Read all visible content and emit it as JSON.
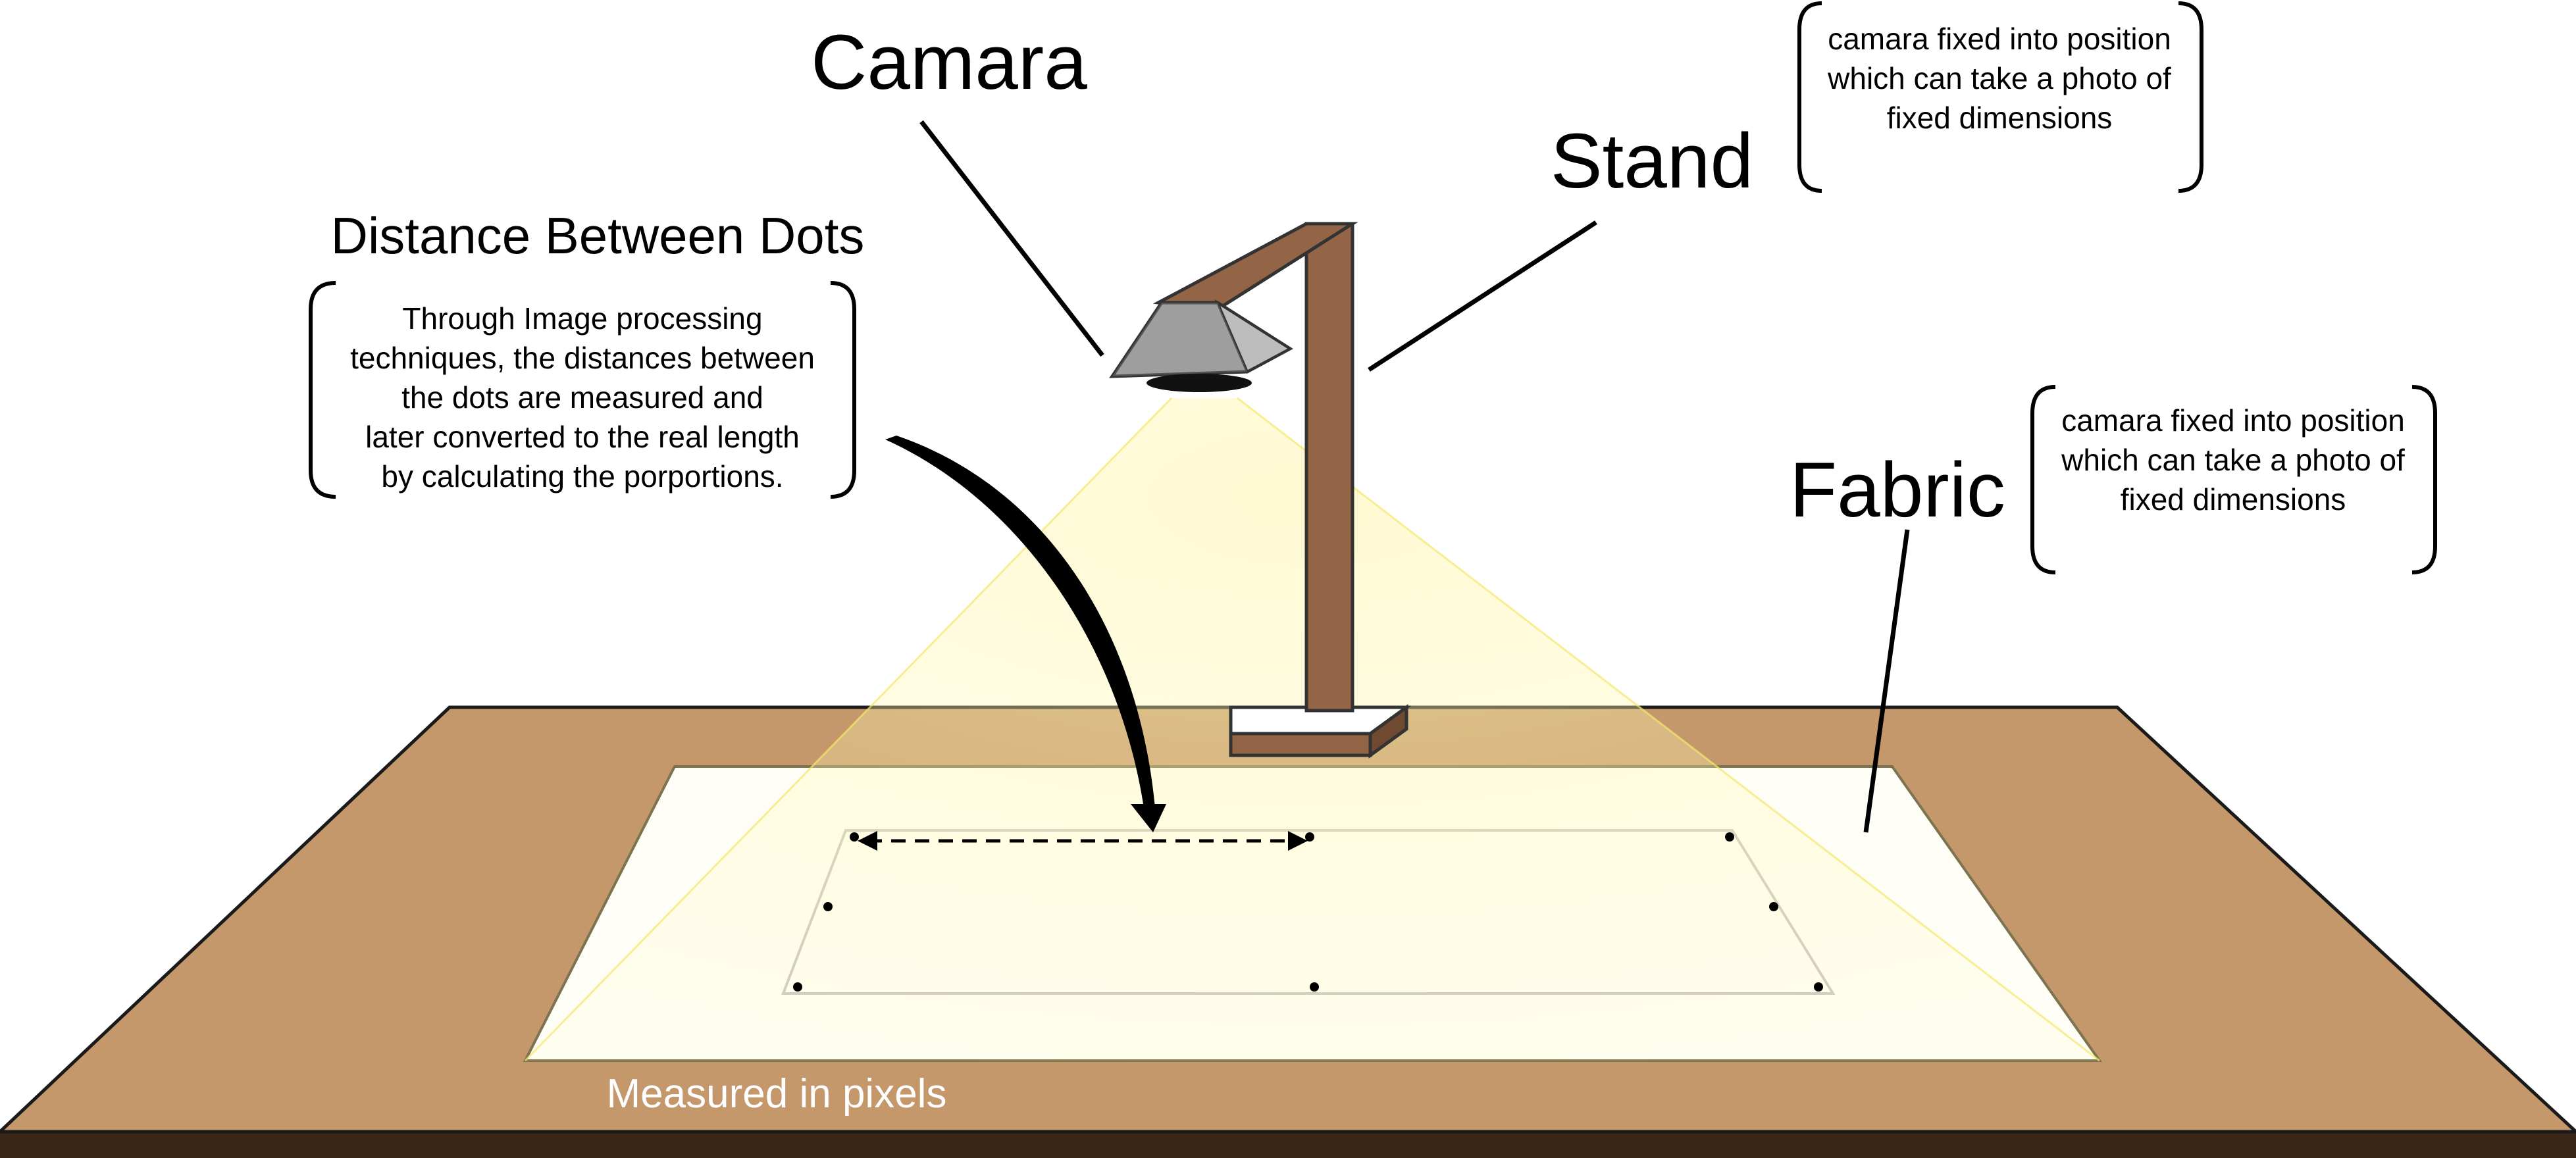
{
  "labels": {
    "camera": "Camara",
    "stand": "Stand",
    "fabric": "Fabric",
    "distance_heading": "Distance Between Dots",
    "measured": "Measured in pixels"
  },
  "notes": {
    "distance_lines": [
      "Through Image processing",
      "techniques, the distances between",
      "the dots are measured and",
      "later converted to the real length",
      "by calculating the porportions."
    ],
    "stand_lines": [
      "camara fixed into position",
      "which can take a photo of",
      "fixed dimensions"
    ],
    "fabric_lines": [
      "camara fixed into position",
      "which can take a photo of",
      "fixed dimensions"
    ]
  },
  "colors": {
    "table_top": "#c4986b",
    "table_edge": "#3a2616",
    "fabric": "#fffef6",
    "stand_wood": "#946446",
    "stand_dark": "#6f4a31",
    "camera_grey": "#a7a7a7",
    "light_beam": "#fff3a0"
  }
}
